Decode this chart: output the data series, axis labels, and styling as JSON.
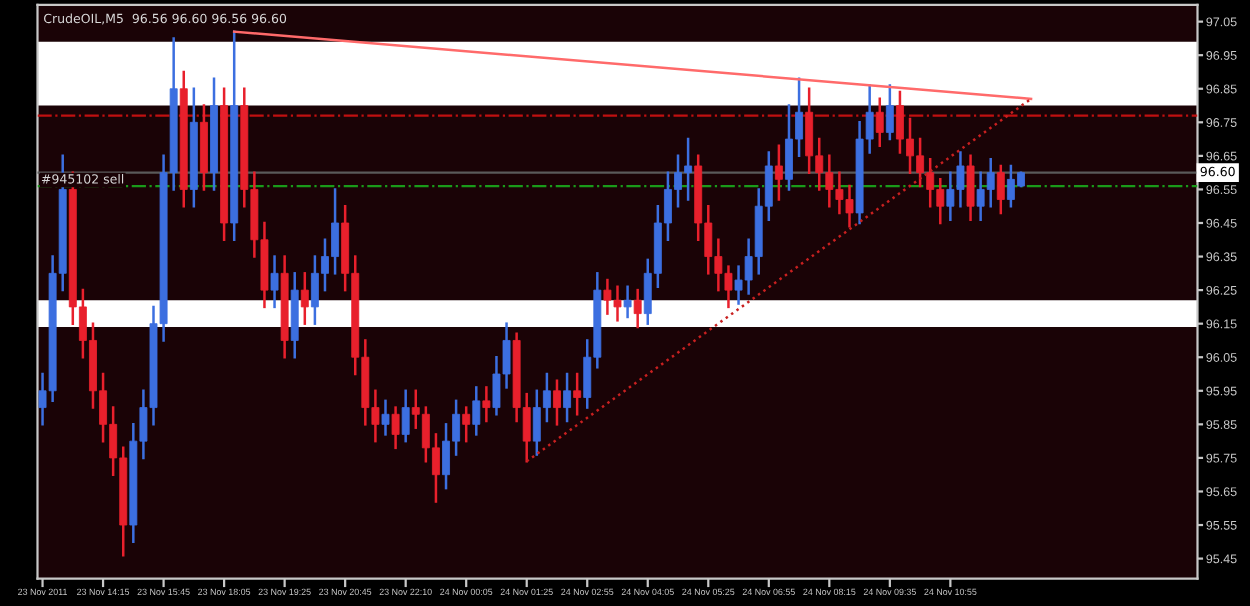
{
  "chart_data": {
    "type": "candlestick",
    "title": "CrudeOIL,M5  96.56 96.60 96.56 96.60",
    "categories": [
      "23 Nov 2011",
      null,
      null,
      null,
      null,
      null,
      "23 Nov 14:15",
      null,
      null,
      null,
      null,
      null,
      "23 Nov 15:45",
      null,
      null,
      null,
      null,
      null,
      "23 Nov 18:05",
      null,
      null,
      null,
      null,
      null,
      "23 Nov 19:25",
      null,
      null,
      null,
      null,
      null,
      "23 Nov 20:45",
      null,
      null,
      null,
      null,
      null,
      "23 Nov 22:10",
      null,
      null,
      null,
      null,
      null,
      "24 Nov 00:05",
      null,
      null,
      null,
      null,
      null,
      "24 Nov 01:25",
      null,
      null,
      null,
      null,
      null,
      "24 Nov 02:55",
      null,
      null,
      null,
      null,
      null,
      "24 Nov 04:05",
      null,
      null,
      null,
      null,
      null,
      "24 Nov 05:25",
      null,
      null,
      null,
      null,
      null,
      "24 Nov 06:55",
      null,
      null,
      null,
      null,
      null,
      "24 Nov 08:15",
      null,
      null,
      null,
      null,
      null,
      "24 Nov 09:35",
      null,
      null,
      null,
      null,
      null,
      "24 Nov 10:55",
      null,
      null,
      null,
      null,
      null,
      null,
      null,
      null,
      null,
      null,
      null,
      null,
      null,
      null,
      null,
      null,
      null,
      null,
      null,
      null,
      null,
      null,
      null,
      null
    ],
    "ohlc": [
      [
        95.9,
        96.0,
        95.85,
        95.95
      ],
      [
        95.95,
        96.35,
        95.92,
        96.3
      ],
      [
        96.3,
        96.65,
        96.25,
        96.55
      ],
      [
        96.55,
        96.6,
        96.15,
        96.2
      ],
      [
        96.2,
        96.25,
        96.05,
        96.1
      ],
      [
        96.1,
        96.15,
        95.9,
        95.95
      ],
      [
        95.95,
        96.0,
        95.8,
        95.85
      ],
      [
        95.85,
        95.9,
        95.7,
        95.75
      ],
      [
        95.75,
        95.78,
        95.46,
        95.55
      ],
      [
        95.55,
        95.85,
        95.5,
        95.8
      ],
      [
        95.8,
        95.95,
        95.75,
        95.9
      ],
      [
        95.9,
        96.2,
        95.85,
        96.15
      ],
      [
        96.15,
        96.65,
        96.1,
        96.6
      ],
      [
        96.6,
        97.0,
        96.55,
        96.85
      ],
      [
        96.85,
        96.9,
        96.5,
        96.55
      ],
      [
        96.55,
        96.85,
        96.5,
        96.75
      ],
      [
        96.75,
        96.8,
        96.55,
        96.6
      ],
      [
        96.6,
        96.88,
        96.55,
        96.8
      ],
      [
        96.8,
        96.85,
        96.4,
        96.45
      ],
      [
        96.45,
        97.02,
        96.4,
        96.8
      ],
      [
        96.8,
        96.85,
        96.5,
        96.55
      ],
      [
        96.55,
        96.6,
        96.35,
        96.4
      ],
      [
        96.4,
        96.45,
        96.2,
        96.25
      ],
      [
        96.25,
        96.35,
        96.2,
        96.3
      ],
      [
        96.3,
        96.35,
        96.05,
        96.1
      ],
      [
        96.1,
        96.3,
        96.05,
        96.25
      ],
      [
        96.25,
        96.3,
        96.15,
        96.2
      ],
      [
        96.2,
        96.35,
        96.15,
        96.3
      ],
      [
        96.3,
        96.4,
        96.25,
        96.35
      ],
      [
        96.35,
        96.55,
        96.3,
        96.45
      ],
      [
        96.45,
        96.5,
        96.25,
        96.3
      ],
      [
        96.3,
        96.35,
        96.0,
        96.05
      ],
      [
        96.05,
        96.1,
        95.85,
        95.9
      ],
      [
        95.9,
        95.95,
        95.8,
        95.85
      ],
      [
        95.85,
        95.92,
        95.82,
        95.88
      ],
      [
        95.88,
        95.9,
        95.78,
        95.82
      ],
      [
        95.82,
        95.95,
        95.8,
        95.9
      ],
      [
        95.9,
        95.95,
        95.84,
        95.88
      ],
      [
        95.88,
        95.9,
        95.74,
        95.78
      ],
      [
        95.78,
        95.82,
        95.62,
        95.7
      ],
      [
        95.7,
        95.85,
        95.66,
        95.8
      ],
      [
        95.8,
        95.92,
        95.76,
        95.88
      ],
      [
        95.88,
        95.9,
        95.8,
        95.85
      ],
      [
        95.85,
        95.96,
        95.82,
        95.92
      ],
      [
        95.92,
        95.96,
        95.86,
        95.9
      ],
      [
        95.9,
        96.05,
        95.88,
        96.0
      ],
      [
        96.0,
        96.15,
        95.96,
        96.1
      ],
      [
        96.1,
        96.12,
        95.86,
        95.9
      ],
      [
        95.9,
        95.94,
        95.74,
        95.8
      ],
      [
        95.8,
        95.95,
        95.76,
        95.9
      ],
      [
        95.9,
        96.0,
        95.86,
        95.95
      ],
      [
        95.95,
        95.98,
        95.85,
        95.9
      ],
      [
        95.9,
        96.0,
        95.86,
        95.95
      ],
      [
        95.95,
        96.0,
        95.88,
        95.93
      ],
      [
        95.93,
        96.1,
        95.9,
        96.05
      ],
      [
        96.05,
        96.3,
        96.02,
        96.25
      ],
      [
        96.25,
        96.28,
        96.18,
        96.22
      ],
      [
        96.22,
        96.26,
        96.16,
        96.2
      ],
      [
        96.2,
        96.26,
        96.17,
        96.22
      ],
      [
        96.22,
        96.25,
        96.14,
        96.18
      ],
      [
        96.18,
        96.34,
        96.15,
        96.3
      ],
      [
        96.3,
        96.5,
        96.26,
        96.45
      ],
      [
        96.45,
        96.6,
        96.4,
        96.55
      ],
      [
        96.55,
        96.65,
        96.5,
        96.6
      ],
      [
        96.6,
        96.7,
        96.52,
        96.62
      ],
      [
        96.62,
        96.65,
        96.4,
        96.45
      ],
      [
        96.45,
        96.5,
        96.3,
        96.35
      ],
      [
        96.35,
        96.4,
        96.25,
        96.3
      ],
      [
        96.3,
        96.32,
        96.2,
        96.25
      ],
      [
        96.25,
        96.32,
        96.21,
        96.28
      ],
      [
        96.28,
        96.4,
        96.24,
        96.35
      ],
      [
        96.35,
        96.55,
        96.3,
        96.5
      ],
      [
        96.5,
        96.66,
        96.46,
        96.62
      ],
      [
        96.62,
        96.68,
        96.52,
        96.58
      ],
      [
        96.58,
        96.8,
        96.55,
        96.7
      ],
      [
        96.7,
        96.88,
        96.65,
        96.78
      ],
      [
        96.78,
        96.85,
        96.6,
        96.65
      ],
      [
        96.65,
        96.7,
        96.55,
        96.6
      ],
      [
        96.6,
        96.65,
        96.5,
        96.55
      ],
      [
        96.55,
        96.6,
        96.48,
        96.52
      ],
      [
        96.52,
        96.56,
        96.44,
        96.48
      ],
      [
        96.48,
        96.75,
        96.45,
        96.7
      ],
      [
        96.7,
        96.86,
        96.66,
        96.78
      ],
      [
        96.78,
        96.82,
        96.68,
        96.72
      ],
      [
        96.72,
        96.86,
        96.7,
        96.8
      ],
      [
        96.8,
        96.84,
        96.66,
        96.7
      ],
      [
        96.7,
        96.76,
        96.6,
        96.65
      ],
      [
        96.65,
        96.7,
        96.56,
        96.6
      ],
      [
        96.6,
        96.64,
        96.5,
        96.55
      ],
      [
        96.55,
        96.58,
        96.45,
        96.5
      ],
      [
        96.5,
        96.6,
        96.46,
        96.55
      ],
      [
        96.55,
        96.66,
        96.5,
        96.62
      ],
      [
        96.62,
        96.65,
        96.46,
        96.5
      ],
      [
        96.5,
        96.6,
        96.46,
        96.55
      ],
      [
        96.55,
        96.64,
        96.5,
        96.6
      ],
      [
        96.6,
        96.62,
        96.48,
        96.52
      ],
      [
        96.52,
        96.62,
        96.5,
        96.58
      ],
      [
        96.56,
        96.6,
        96.56,
        96.6
      ],
      null,
      null,
      null,
      null,
      null,
      null,
      null,
      null,
      null,
      null,
      null,
      null,
      null,
      null,
      null,
      null,
      null
    ],
    "colors": [
      "#3c6fe0",
      "#3c6fe0",
      "#3c6fe0",
      "#e8202c",
      "#e8202c",
      "#e8202c",
      "#e8202c",
      "#e8202c",
      "#e8202c",
      "#3c6fe0",
      "#3c6fe0",
      "#3c6fe0",
      "#3c6fe0",
      "#3c6fe0",
      "#e8202c",
      "#3c6fe0",
      "#e8202c",
      "#3c6fe0",
      "#e8202c",
      "#3c6fe0",
      "#e8202c",
      "#e8202c",
      "#e8202c",
      "#3c6fe0",
      "#e8202c",
      "#3c6fe0",
      "#e8202c",
      "#3c6fe0",
      "#3c6fe0",
      "#3c6fe0",
      "#e8202c",
      "#e8202c",
      "#e8202c",
      "#e8202c",
      "#3c6fe0",
      "#e8202c",
      "#3c6fe0",
      "#e8202c",
      "#e8202c",
      "#e8202c",
      "#3c6fe0",
      "#3c6fe0",
      "#e8202c",
      "#3c6fe0",
      "#e8202c",
      "#3c6fe0",
      "#3c6fe0",
      "#e8202c",
      "#e8202c",
      "#3c6fe0",
      "#3c6fe0",
      "#e8202c",
      "#3c6fe0",
      "#e8202c",
      "#3c6fe0",
      "#3c6fe0",
      "#e8202c",
      "#e8202c",
      "#3c6fe0",
      "#e8202c",
      "#3c6fe0",
      "#3c6fe0",
      "#3c6fe0",
      "#3c6fe0",
      "#3c6fe0",
      "#e8202c",
      "#e8202c",
      "#e8202c",
      "#e8202c",
      "#3c6fe0",
      "#3c6fe0",
      "#3c6fe0",
      "#3c6fe0",
      "#e8202c",
      "#3c6fe0",
      "#3c6fe0",
      "#e8202c",
      "#e8202c",
      "#e8202c",
      "#e8202c",
      "#e8202c",
      "#3c6fe0",
      "#3c6fe0",
      "#e8202c",
      "#3c6fe0",
      "#e8202c",
      "#e8202c",
      "#e8202c",
      "#e8202c",
      "#e8202c",
      "#3c6fe0",
      "#3c6fe0",
      "#e8202c",
      "#3c6fe0",
      "#3c6fe0",
      "#e8202c",
      "#3c6fe0",
      "#3c6fe0",
      null,
      null,
      null,
      null,
      null,
      null,
      null,
      null,
      null,
      null,
      null,
      null,
      null,
      null,
      null,
      null,
      null
    ],
    "series": [
      {
        "type": "line",
        "color": "#ff6a6a",
        "line_style": "solid",
        "values": [
          null,
          null,
          null,
          null,
          null,
          null,
          null,
          null,
          null,
          null,
          null,
          null,
          null,
          null,
          null,
          null,
          null,
          null,
          null,
          97.02,
          null,
          null,
          null,
          null,
          null,
          null,
          null,
          null,
          null,
          null,
          null,
          null,
          null,
          null,
          null,
          null,
          null,
          null,
          null,
          null,
          null,
          null,
          null,
          null,
          null,
          null,
          null,
          null,
          null,
          null,
          null,
          null,
          null,
          null,
          null,
          null,
          null,
          null,
          null,
          null,
          null,
          null,
          null,
          null,
          null,
          null,
          null,
          null,
          null,
          null,
          null,
          null,
          null,
          null,
          null,
          null,
          null,
          null,
          null,
          null,
          null,
          null,
          null,
          null,
          null,
          null,
          null,
          null,
          null,
          null,
          null,
          null,
          null,
          null,
          null,
          null,
          null,
          null,
          96.82,
          null,
          null,
          null,
          null,
          null,
          null,
          null,
          null,
          null,
          null,
          null,
          null,
          null,
          null,
          null,
          null
        ]
      },
      {
        "type": "line",
        "color": "#c82020",
        "line_style": "dotted",
        "values": [
          null,
          null,
          null,
          null,
          null,
          null,
          null,
          null,
          null,
          null,
          null,
          null,
          null,
          null,
          null,
          null,
          null,
          null,
          null,
          null,
          null,
          null,
          null,
          null,
          null,
          null,
          null,
          null,
          null,
          null,
          null,
          null,
          null,
          null,
          null,
          null,
          null,
          null,
          null,
          null,
          null,
          null,
          null,
          null,
          null,
          null,
          null,
          null,
          95.74,
          null,
          null,
          null,
          null,
          null,
          null,
          null,
          null,
          null,
          null,
          null,
          null,
          null,
          null,
          null,
          null,
          null,
          null,
          null,
          null,
          null,
          null,
          null,
          null,
          null,
          null,
          null,
          null,
          null,
          null,
          null,
          null,
          null,
          null,
          null,
          null,
          null,
          null,
          null,
          null,
          null,
          null,
          null,
          null,
          null,
          null,
          null,
          null,
          null,
          96.82,
          null,
          null,
          null,
          null,
          null,
          null,
          null,
          null,
          null,
          null,
          null,
          null,
          null,
          null,
          null,
          null
        ]
      }
    ],
    "ylim": [
      95.39,
      97.1
    ],
    "yticks": [
      95.45,
      95.55,
      95.65,
      95.75,
      95.85,
      95.95,
      96.05,
      96.15,
      96.25,
      96.35,
      96.45,
      96.55,
      96.65,
      96.75,
      96.85,
      96.95,
      97.05
    ],
    "bands": [
      {
        "axis": "y",
        "from": 96.8,
        "to": 96.99,
        "color": "#ffffff"
      },
      {
        "axis": "y",
        "from": 96.14,
        "to": 96.22,
        "color": "#ffffff"
      }
    ],
    "ref_lines": [
      {
        "axis": "y",
        "value": 96.77,
        "color": "#c01010",
        "line_style": "dashdot"
      },
      {
        "axis": "y",
        "value": 96.56,
        "label": "#945102 sell",
        "color": "#1a9a1a",
        "line_style": "dashdot"
      },
      {
        "axis": "y",
        "value": 96.6,
        "label": "96.60",
        "color": "#5a5a5a",
        "line_style": "solid"
      }
    ],
    "grid": false
  }
}
